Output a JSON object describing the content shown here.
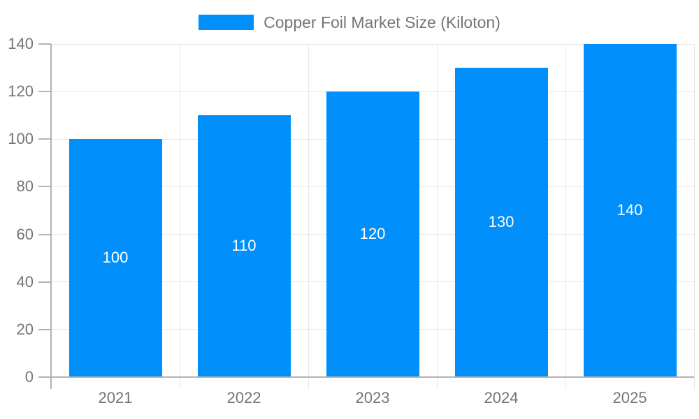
{
  "chart_data": {
    "type": "bar",
    "title": "Copper Foil Market Size (Kiloton)",
    "legend_position": "top-center",
    "categories": [
      "2021",
      "2022",
      "2023",
      "2024",
      "2025"
    ],
    "values": [
      100,
      110,
      120,
      130,
      140
    ],
    "xlabel": "",
    "ylabel": "",
    "ylim": [
      0,
      140
    ],
    "yticks": [
      0,
      20,
      40,
      60,
      80,
      100,
      120,
      140
    ],
    "grid": true,
    "data_labels_inside_bars": true,
    "colors": {
      "bar": "#008FFB",
      "grid": "#e7e7e7",
      "axis_line": "#b3b3b3",
      "axis_text": "#757575",
      "data_label": "#ffffff",
      "background": "#ffffff"
    }
  }
}
